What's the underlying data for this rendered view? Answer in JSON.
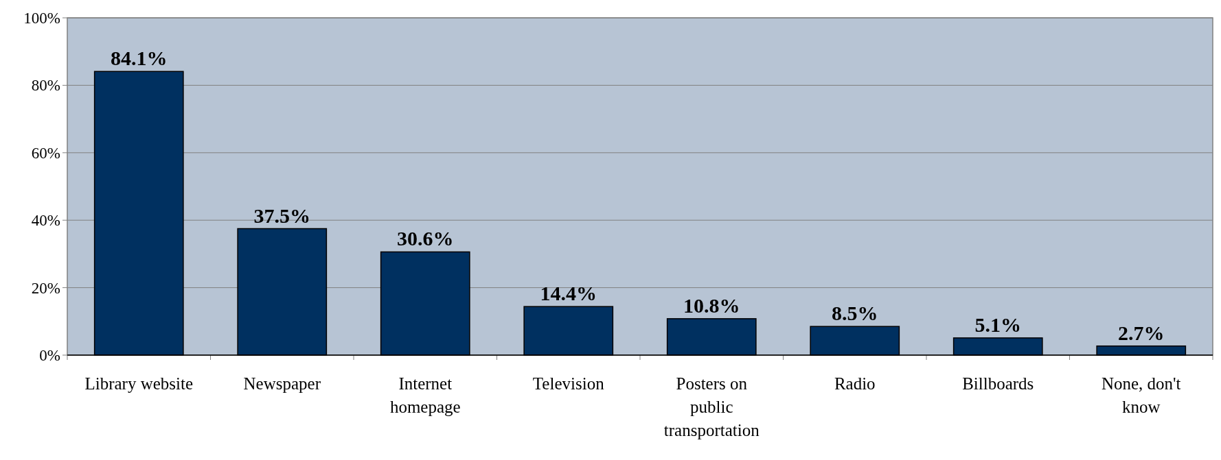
{
  "chart_data": {
    "type": "bar",
    "categories": [
      "Library website",
      "Newspaper",
      "Internet homepage",
      "Television",
      "Posters on public transportation",
      "Radio",
      "Billboards",
      "None, don't know"
    ],
    "values": [
      84.1,
      37.5,
      30.6,
      14.4,
      10.8,
      8.5,
      5.1,
      2.7
    ],
    "value_labels": [
      "84.1%",
      "37.5%",
      "30.6%",
      "14.4%",
      "10.8%",
      "8.5%",
      "5.1%",
      "2.7%"
    ],
    "color": "#003060",
    "ylim": [
      0,
      100
    ],
    "yticks": [
      {
        "value": 0,
        "label": "0%"
      },
      {
        "value": 20,
        "label": "20%"
      },
      {
        "value": 40,
        "label": "40%"
      },
      {
        "value": 60,
        "label": "60%"
      },
      {
        "value": 80,
        "label": "80%"
      },
      {
        "value": 100,
        "label": "100%"
      }
    ],
    "grid": "y"
  }
}
